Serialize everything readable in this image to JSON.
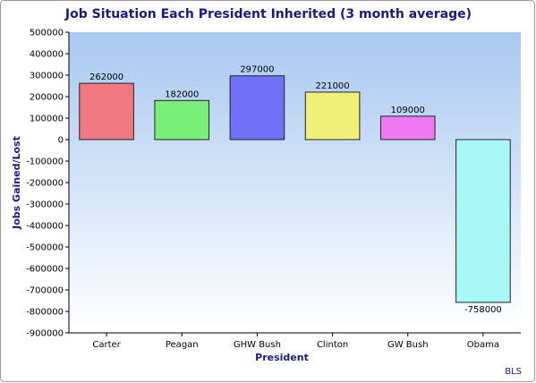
{
  "chart_data": {
    "type": "bar",
    "title": "Job Situation Each President Inherited (3 month average)",
    "xlabel": "President",
    "ylabel": "Jobs Gained/Lost",
    "source": "BLS",
    "categories": [
      "Carter",
      "Peagan",
      "GHW Bush",
      "Clinton",
      "GW Bush",
      "Obama"
    ],
    "values": [
      262000,
      182000,
      297000,
      221000,
      109000,
      -758000
    ],
    "data_labels": [
      "262000",
      "182000",
      "297000",
      "221000",
      "109000",
      "-758000"
    ],
    "ylim": [
      -900000,
      500000
    ],
    "ytick_step": 100000,
    "grid": false,
    "legend": "none"
  },
  "colors": {
    "title": "#1a1a8c",
    "axis_label": "#1a1a8c",
    "plot_bg_top": "#a8c8f0",
    "plot_bg_bottom": "#ffffff",
    "bar_fills": [
      "#f07880",
      "#78f078",
      "#7070f8",
      "#f0f078",
      "#f078f0",
      "#a8f8f8"
    ],
    "bar_stroke": "#222222",
    "frame": "#999999"
  }
}
